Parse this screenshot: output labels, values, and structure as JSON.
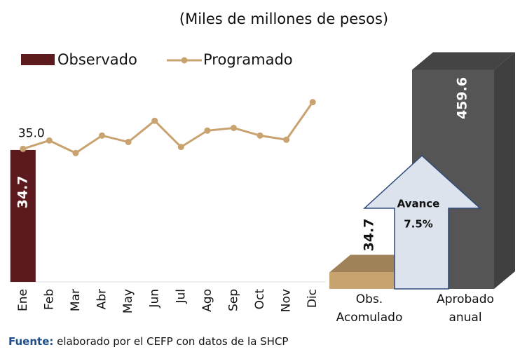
{
  "chart_data": [
    {
      "type": "bar_line",
      "subtitle": "(Miles de millones de pesos)",
      "categories": [
        "Ene",
        "Feb",
        "Mar",
        "Abr",
        "May",
        "Jun",
        "Jul",
        "Ago",
        "Sep",
        "Oct",
        "Nov",
        "Dic"
      ],
      "ylim": [
        0,
        50
      ],
      "legend": "top-left",
      "series": [
        {
          "name": "Observado",
          "type": "bar",
          "color": "#5c1a1f",
          "values": [
            34.7,
            null,
            null,
            null,
            null,
            null,
            null,
            null,
            null,
            null,
            null,
            null
          ]
        },
        {
          "name": "Programado",
          "type": "line",
          "color": "#c8a26f",
          "values": [
            35.0,
            37.2,
            33.9,
            38.5,
            36.8,
            42.4,
            35.5,
            39.8,
            40.5,
            38.5,
            37.4,
            47.3
          ],
          "value_labels": [
            "35.0",
            null,
            null,
            null,
            null,
            null,
            null,
            null,
            null,
            null,
            null,
            null
          ]
        }
      ]
    },
    {
      "type": "bar3d",
      "categories": [
        "Obs. Acomulado",
        "Aprobado anual"
      ],
      "values": [
        34.7,
        459.6
      ],
      "colors": [
        "#c8a26f",
        "#555555"
      ],
      "ylim": [
        0,
        500
      ],
      "annotation": "Avance",
      "avance": {
        "value": 7.5,
        "label": "7.5%"
      }
    }
  ],
  "source_label": "Fuente:",
  "source": "elaborado por el CEFP con datos de la SHCP"
}
